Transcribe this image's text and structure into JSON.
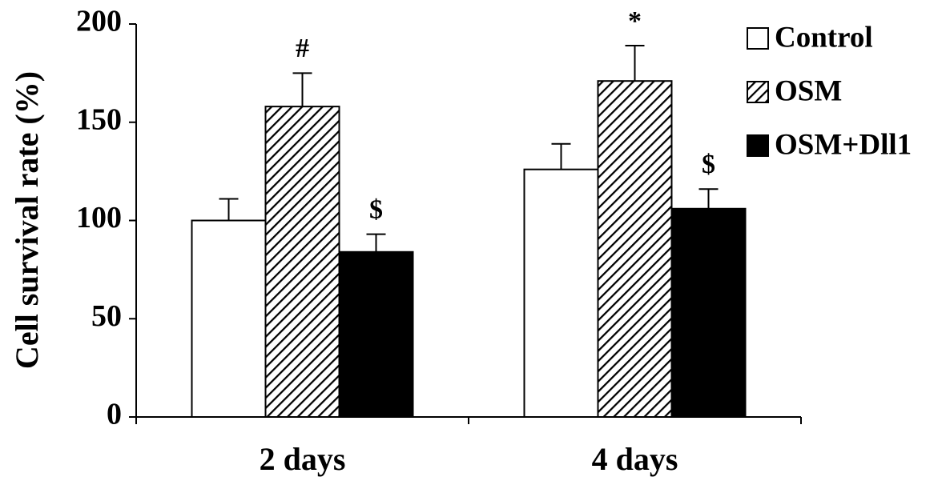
{
  "chart_data": {
    "type": "bar",
    "y_label": "Cell survival rate (%)",
    "categories": [
      "2 days",
      "4 days"
    ],
    "series": [
      {
        "name": "Control",
        "color": "#ffffff",
        "values": [
          100,
          126
        ],
        "errors": [
          11,
          13
        ],
        "annotations": [
          null,
          null
        ]
      },
      {
        "name": "OSM",
        "color": "#000000",
        "pattern": "diagonal",
        "values": [
          158,
          171
        ],
        "errors": [
          17,
          18
        ],
        "annotations": [
          "#",
          "*"
        ]
      },
      {
        "name": "OSM+Dll1",
        "color": "#000000",
        "values": [
          84,
          106
        ],
        "errors": [
          9,
          10
        ],
        "annotations": [
          "$",
          "$"
        ]
      }
    ],
    "ylim": [
      0,
      200
    ],
    "yticks": [
      0,
      50,
      100,
      150,
      200
    ],
    "grid": false,
    "legend": "top-right"
  }
}
